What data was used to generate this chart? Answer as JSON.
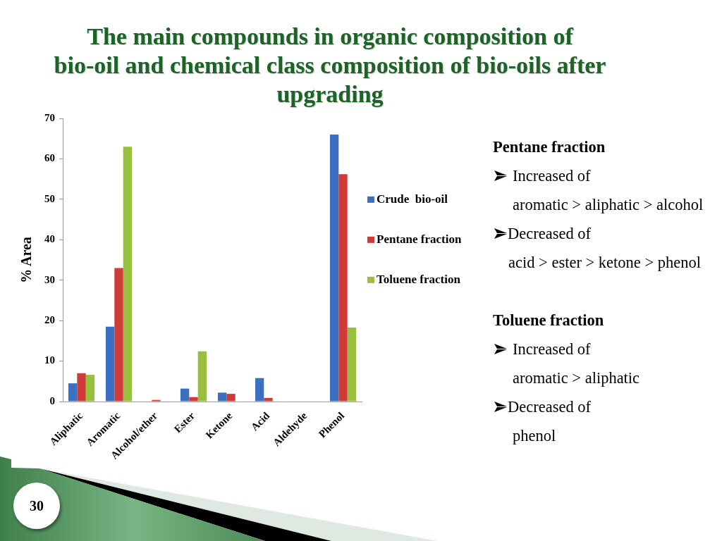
{
  "chart_data": {
    "type": "bar",
    "title": "The main compounds in organic composition of\nbio-oil and chemical class composition of bio-oils after\nupgrading",
    "ylabel": "% Area",
    "categories": [
      "Aliphatic",
      "Aromatic",
      "Alcohol/ether",
      "Ester",
      "Ketone",
      "Acid",
      "Aldehyde",
      "Phenol"
    ],
    "series": [
      {
        "name": "Crude  bio-oil",
        "color": "#3d6fc0",
        "values": [
          4.5,
          18.5,
          null,
          3.2,
          2.2,
          5.8,
          null,
          66
        ]
      },
      {
        "name": "Pentane fraction",
        "color": "#cf3b37",
        "values": [
          7,
          33,
          0.4,
          1.1,
          1.9,
          0.9,
          null,
          56.2
        ]
      },
      {
        "name": "Toluene fraction",
        "color": "#98c03f",
        "values": [
          6.6,
          63,
          null,
          12.4,
          null,
          null,
          null,
          18.3
        ]
      }
    ],
    "ylim": [
      0,
      70
    ],
    "yticks": [
      0,
      10,
      20,
      30,
      40,
      50,
      60,
      70
    ],
    "legend": "right",
    "annotations": [
      "Pentane fraction",
      "Increased of",
      "aromatic > aliphatic > alcohol",
      "Decreased of",
      "acid > ester > ketone > phenol",
      "Toluene fraction",
      "Increased of",
      "aromatic > aliphatic",
      "Decreased of",
      "phenol",
      "30"
    ]
  }
}
